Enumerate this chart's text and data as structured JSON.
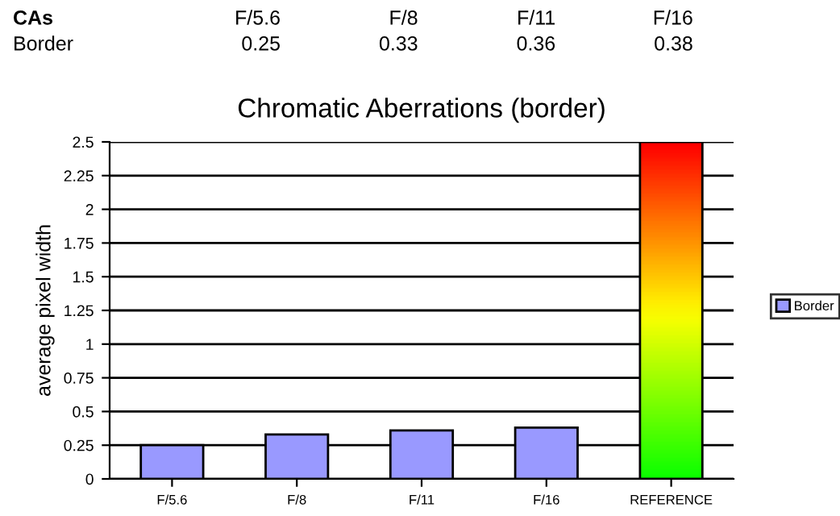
{
  "chart_data": {
    "type": "bar",
    "title": "Chromatic Aberrations (border)",
    "ylabel": "average pixel width",
    "categories": [
      "F/5.6",
      "F/8",
      "F/11",
      "F/16",
      "REFERENCE"
    ],
    "series": [
      {
        "name": "Border",
        "color": "#9999ff",
        "values": [
          0.25,
          0.33,
          0.36,
          0.38,
          null
        ]
      },
      {
        "color": "#ffff00",
        "values": [
          null,
          null,
          null,
          null,
          2.5
        ]
      }
    ],
    "annotations": [
      "CAs",
      "0.25",
      "0.33",
      "0.36",
      "0.38"
    ],
    "ylim": [
      0,
      2.5
    ],
    "yticks": [
      0,
      0.25,
      0.5,
      0.75,
      1,
      1.25,
      1.5,
      1.75,
      2,
      2.25,
      2.5
    ],
    "grid": "y",
    "legend": "right"
  }
}
